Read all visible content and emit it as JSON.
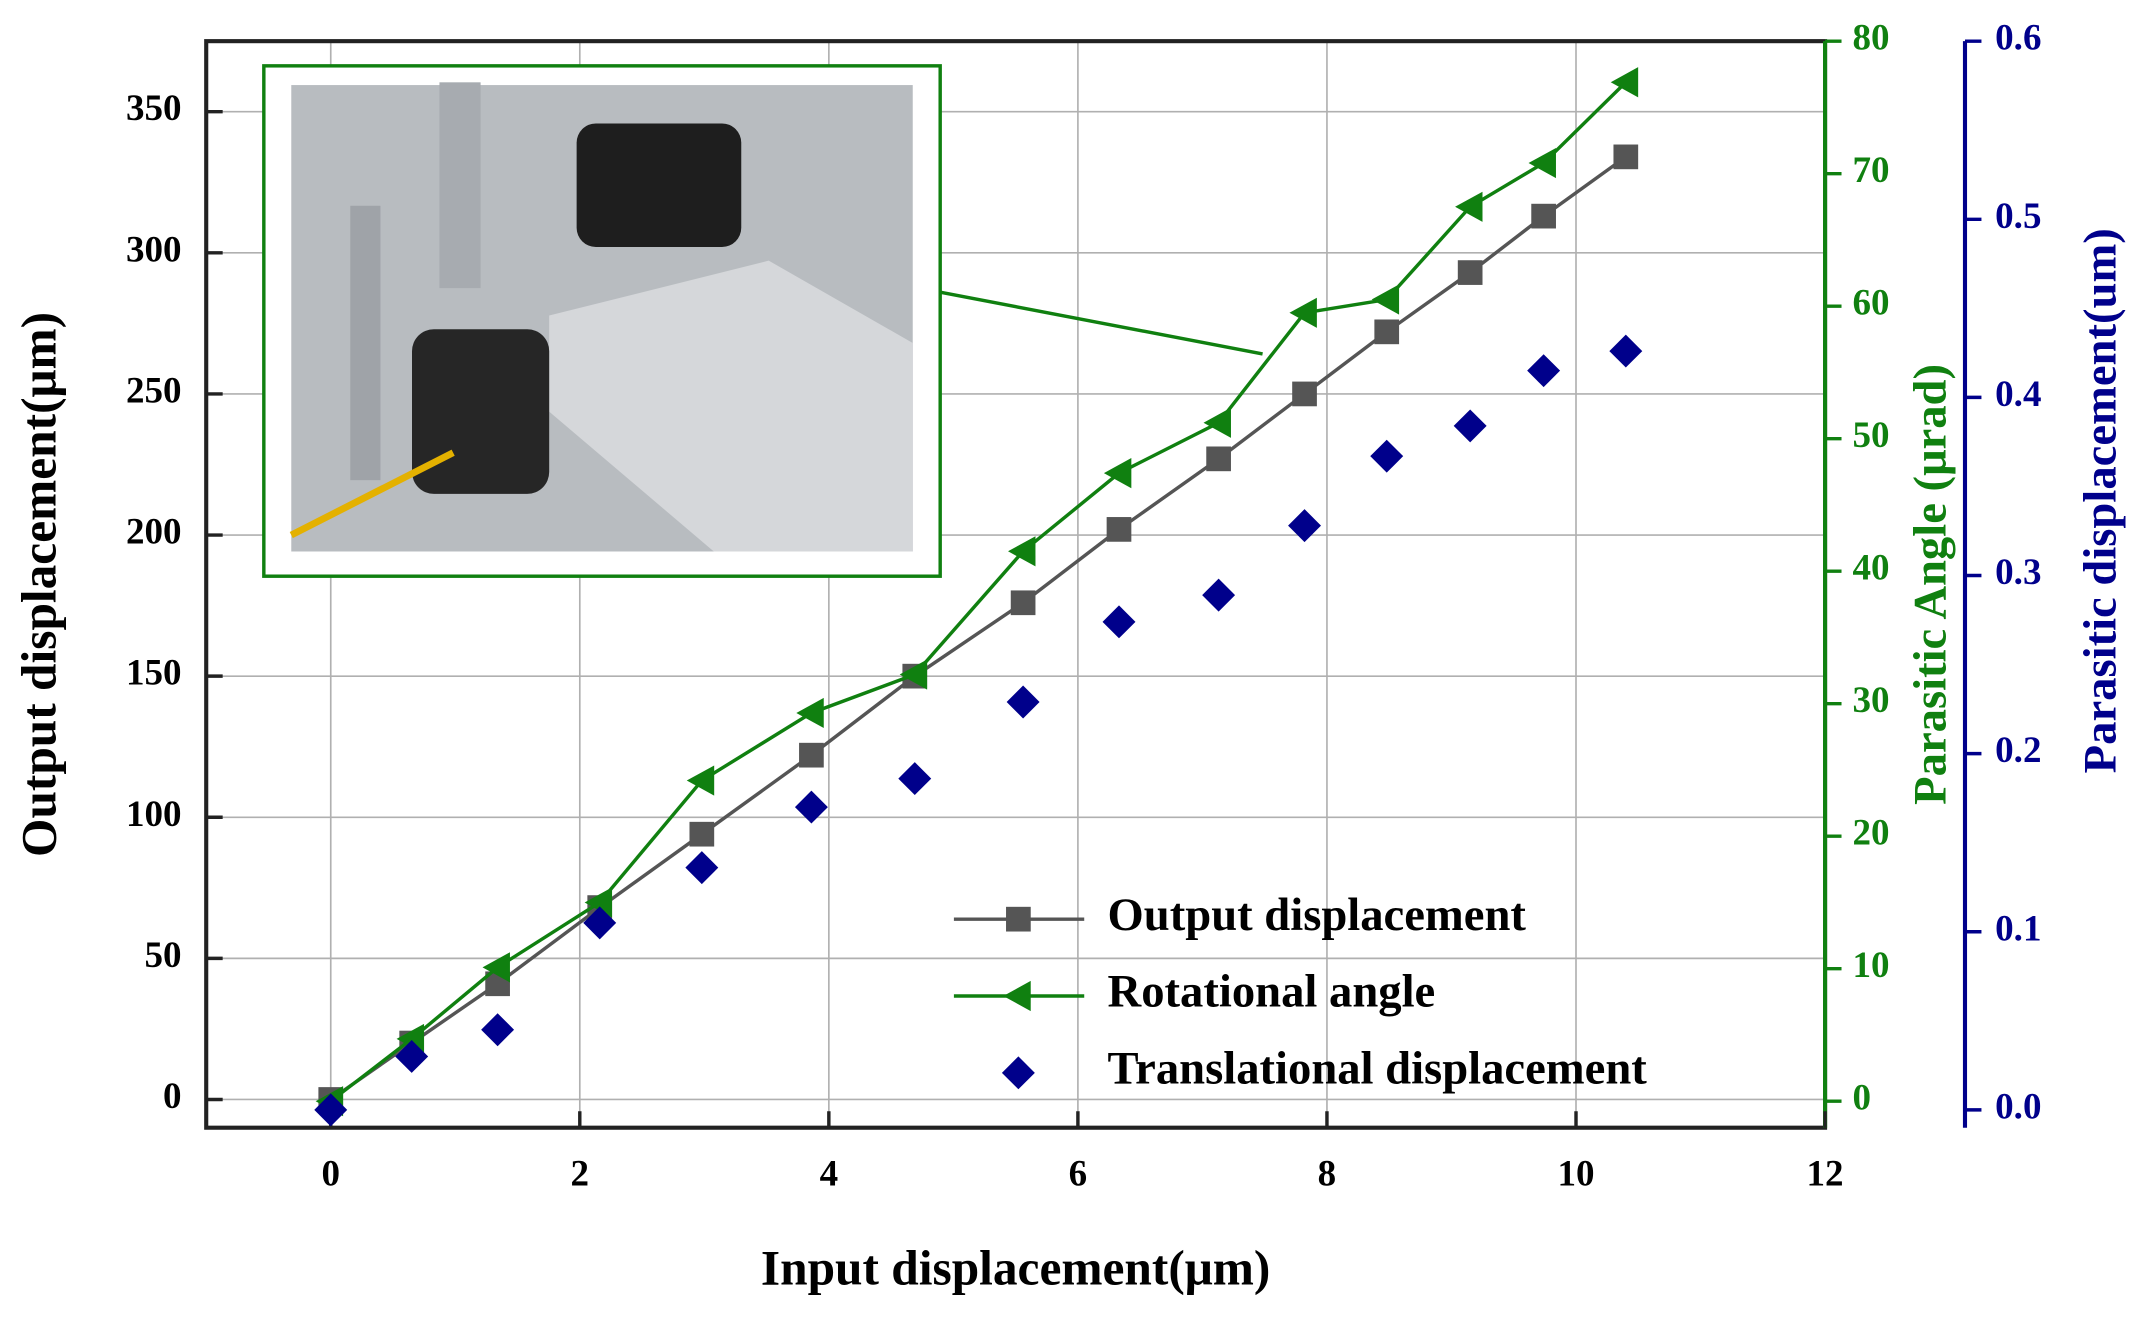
{
  "chart_data": {
    "type": "line",
    "xlabel": "Input displacement(μm)",
    "ylabel": "Output displacement(μm)",
    "y2label": "Parasitic Angle (μrad)",
    "y3label": "Parasitic displacement(um)",
    "x": [
      0,
      0.65,
      1.34,
      2.16,
      2.98,
      3.86,
      4.69,
      5.56,
      6.33,
      7.13,
      7.82,
      8.48,
      9.15,
      9.74,
      10.4
    ],
    "xlim": [
      -1,
      12
    ],
    "xticks": [
      0,
      2,
      4,
      6,
      8,
      10,
      12
    ],
    "ylim": [
      -10,
      375
    ],
    "yticks": [
      0,
      50,
      100,
      150,
      200,
      250,
      300,
      350
    ],
    "y2lim": [
      -2,
      80
    ],
    "y2ticks": [
      0,
      10,
      20,
      30,
      40,
      50,
      60,
      70,
      80
    ],
    "y3lim": [
      -0.01,
      0.6
    ],
    "y3ticks": [
      {
        "value": 0,
        "label": "0.0"
      },
      0.1,
      0.2,
      0.3,
      0.4,
      0.5,
      0.6
    ],
    "grid": true,
    "legend": "lower right",
    "series": [
      {
        "name": "Output displacement",
        "color": "#555555",
        "marker": "square",
        "line": true,
        "axis": "y",
        "values": [
          0,
          20,
          41,
          68,
          94,
          122,
          150,
          176,
          202,
          227,
          250,
          272,
          293,
          313,
          334
        ]
      },
      {
        "name": "Rotational angle",
        "color": "#108010",
        "marker": "triangle-left",
        "line": true,
        "axis": "y2",
        "values": [
          0,
          4.7,
          10.1,
          15.0,
          24.2,
          29.3,
          32.2,
          41.5,
          47.4,
          51.2,
          59.5,
          60.5,
          67.5,
          70.8,
          76.9
        ]
      },
      {
        "name": "Translational displacement",
        "color": "#00008b",
        "marker": "diamond",
        "line": false,
        "axis": "y3",
        "values": [
          0,
          0.03,
          0.045,
          0.105,
          0.136,
          0.17,
          0.186,
          0.229,
          0.274,
          0.289,
          0.328,
          0.367,
          0.384,
          0.415,
          0.426
        ]
      }
    ]
  }
}
